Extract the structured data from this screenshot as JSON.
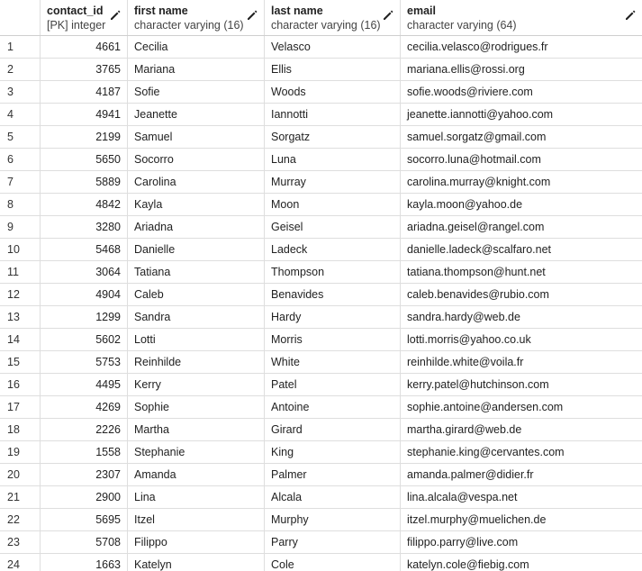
{
  "columns": [
    {
      "name": "contact_id",
      "type": "[PK] integer"
    },
    {
      "name": "first name",
      "type": "character varying (16)"
    },
    {
      "name": "last name",
      "type": "character varying (16)"
    },
    {
      "name": "email",
      "type": "character varying (64)"
    }
  ],
  "icons": {
    "edit": "pencil-icon"
  },
  "rows": [
    {
      "index": "1",
      "contact_id": "4661",
      "first_name": "Cecilia",
      "last_name": "Velasco",
      "email": "cecilia.velasco@rodrigues.fr"
    },
    {
      "index": "2",
      "contact_id": "3765",
      "first_name": "Mariana",
      "last_name": "Ellis",
      "email": "mariana.ellis@rossi.org"
    },
    {
      "index": "3",
      "contact_id": "4187",
      "first_name": "Sofie",
      "last_name": "Woods",
      "email": "sofie.woods@riviere.com"
    },
    {
      "index": "4",
      "contact_id": "4941",
      "first_name": "Jeanette",
      "last_name": "Iannotti",
      "email": "jeanette.iannotti@yahoo.com"
    },
    {
      "index": "5",
      "contact_id": "2199",
      "first_name": "Samuel",
      "last_name": "Sorgatz",
      "email": "samuel.sorgatz@gmail.com"
    },
    {
      "index": "6",
      "contact_id": "5650",
      "first_name": "Socorro",
      "last_name": "Luna",
      "email": "socorro.luna@hotmail.com"
    },
    {
      "index": "7",
      "contact_id": "5889",
      "first_name": "Carolina",
      "last_name": "Murray",
      "email": "carolina.murray@knight.com"
    },
    {
      "index": "8",
      "contact_id": "4842",
      "first_name": "Kayla",
      "last_name": "Moon",
      "email": "kayla.moon@yahoo.de"
    },
    {
      "index": "9",
      "contact_id": "3280",
      "first_name": "Ariadna",
      "last_name": "Geisel",
      "email": "ariadna.geisel@rangel.com"
    },
    {
      "index": "10",
      "contact_id": "5468",
      "first_name": "Danielle",
      "last_name": "Ladeck",
      "email": "danielle.ladeck@scalfaro.net"
    },
    {
      "index": "11",
      "contact_id": "3064",
      "first_name": "Tatiana",
      "last_name": "Thompson",
      "email": "tatiana.thompson@hunt.net"
    },
    {
      "index": "12",
      "contact_id": "4904",
      "first_name": "Caleb",
      "last_name": "Benavides",
      "email": "caleb.benavides@rubio.com"
    },
    {
      "index": "13",
      "contact_id": "1299",
      "first_name": "Sandra",
      "last_name": "Hardy",
      "email": "sandra.hardy@web.de"
    },
    {
      "index": "14",
      "contact_id": "5602",
      "first_name": "Lotti",
      "last_name": "Morris",
      "email": "lotti.morris@yahoo.co.uk"
    },
    {
      "index": "15",
      "contact_id": "5753",
      "first_name": "Reinhilde",
      "last_name": "White",
      "email": "reinhilde.white@voila.fr"
    },
    {
      "index": "16",
      "contact_id": "4495",
      "first_name": "Kerry",
      "last_name": "Patel",
      "email": "kerry.patel@hutchinson.com"
    },
    {
      "index": "17",
      "contact_id": "4269",
      "first_name": "Sophie",
      "last_name": "Antoine",
      "email": "sophie.antoine@andersen.com"
    },
    {
      "index": "18",
      "contact_id": "2226",
      "first_name": "Martha",
      "last_name": "Girard",
      "email": "martha.girard@web.de"
    },
    {
      "index": "19",
      "contact_id": "1558",
      "first_name": "Stephanie",
      "last_name": "King",
      "email": "stephanie.king@cervantes.com"
    },
    {
      "index": "20",
      "contact_id": "2307",
      "first_name": "Amanda",
      "last_name": "Palmer",
      "email": "amanda.palmer@didier.fr"
    },
    {
      "index": "21",
      "contact_id": "2900",
      "first_name": "Lina",
      "last_name": "Alcala",
      "email": "lina.alcala@vespa.net"
    },
    {
      "index": "22",
      "contact_id": "5695",
      "first_name": "Itzel",
      "last_name": "Murphy",
      "email": "itzel.murphy@muelichen.de"
    },
    {
      "index": "23",
      "contact_id": "5708",
      "first_name": "Filippo",
      "last_name": "Parry",
      "email": "filippo.parry@live.com"
    },
    {
      "index": "24",
      "contact_id": "1663",
      "first_name": "Katelyn",
      "last_name": "Cole",
      "email": "katelyn.cole@fiebig.com"
    }
  ]
}
